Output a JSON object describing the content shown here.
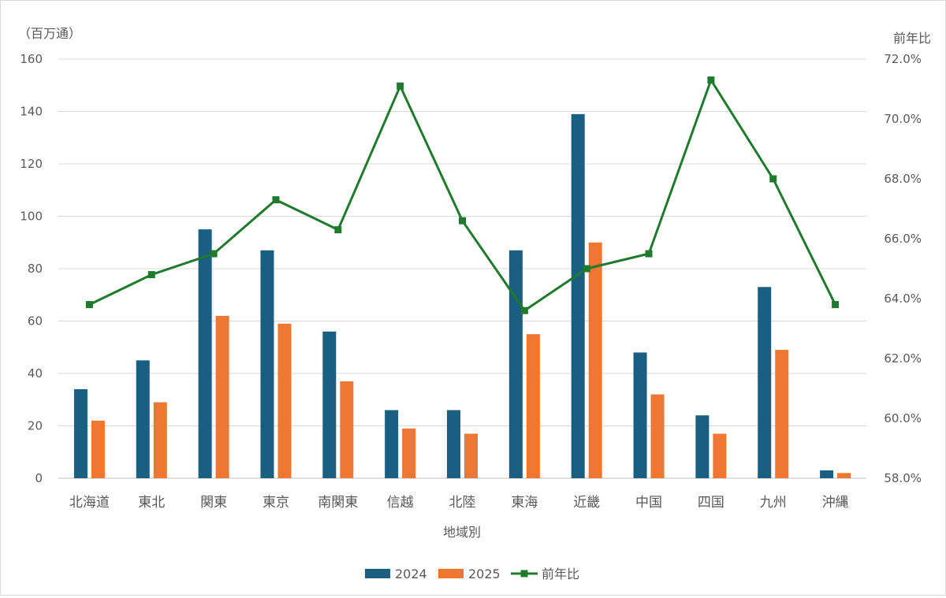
{
  "chart_data": {
    "type": "bar",
    "xlabel": "地域別",
    "ylabel": "（百万通）",
    "y2label": "前年比",
    "categories": [
      "北海道",
      "東北",
      "関東",
      "東京",
      "南関東",
      "信越",
      "北陸",
      "東海",
      "近畿",
      "中国",
      "四国",
      "九州",
      "沖縄"
    ],
    "ylim": [
      0,
      160
    ],
    "yticks": [
      "0",
      "20",
      "40",
      "60",
      "80",
      "100",
      "120",
      "140",
      "160"
    ],
    "y2lim": [
      58,
      72
    ],
    "y2ticks": [
      "58.0%",
      "60.0%",
      "62.0%",
      "64.0%",
      "66.0%",
      "68.0%",
      "70.0%",
      "72.0%"
    ],
    "series": [
      {
        "name": "2024",
        "kind": "bar",
        "axis": "left",
        "color": "#1a5e82",
        "values": [
          34,
          45,
          95,
          87,
          56,
          26,
          26,
          87,
          139,
          48,
          24,
          73,
          3
        ]
      },
      {
        "name": "2025",
        "kind": "bar",
        "axis": "left",
        "color": "#ed7733",
        "values": [
          22,
          29,
          62,
          59,
          37,
          19,
          17,
          55,
          90,
          32,
          17,
          49,
          2
        ]
      },
      {
        "name": "前年比",
        "kind": "line",
        "axis": "right",
        "color": "#1f7a2e",
        "values": [
          63.8,
          64.8,
          65.5,
          67.3,
          66.3,
          71.1,
          66.6,
          63.6,
          65.0,
          65.5,
          71.3,
          68.0,
          63.8
        ]
      }
    ],
    "grid": true,
    "legend_position": "bottom"
  }
}
